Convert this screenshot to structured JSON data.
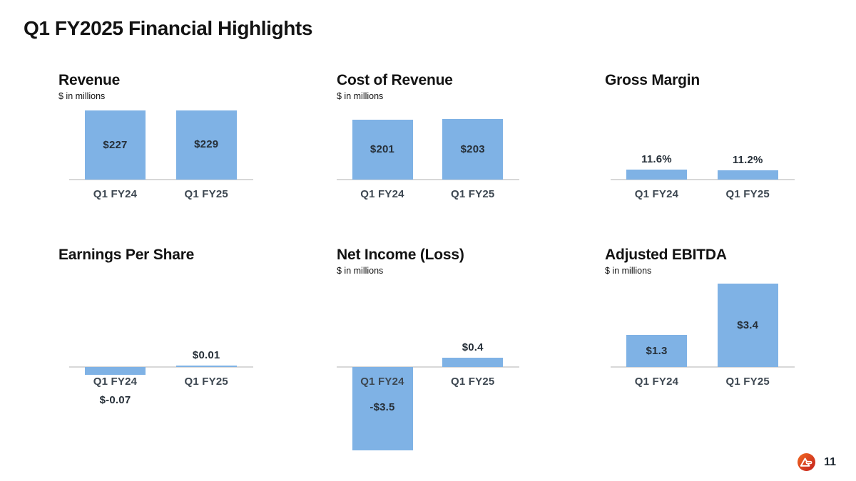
{
  "slide": {
    "title": "Q1 FY2025 Financial Highlights",
    "page_number": "11"
  },
  "colors": {
    "bar": "#7FB2E5",
    "baseline": "#D8D8D8",
    "title": "#131313",
    "value_label": "#262F38",
    "category_label": "#3D4751",
    "logo_red": "#C21F1F",
    "logo_orange": "#F26A21"
  },
  "chart_data": [
    {
      "id": "revenue",
      "type": "bar",
      "title": "Revenue",
      "subtitle": "$ in millions",
      "categories": [
        "Q1 FY24",
        "Q1 FY25"
      ],
      "values": [
        227,
        229
      ],
      "value_labels": [
        "$227",
        "$229"
      ],
      "ylim": [
        0,
        235
      ],
      "label_placement": [
        "inside",
        "inside"
      ],
      "grid": false,
      "legend": "none"
    },
    {
      "id": "cost-of-revenue",
      "type": "bar",
      "title": "Cost of Revenue",
      "subtitle": "$ in millions",
      "categories": [
        "Q1 FY24",
        "Q1 FY25"
      ],
      "values": [
        201,
        203
      ],
      "value_labels": [
        "$201",
        "$203"
      ],
      "ylim": [
        0,
        240
      ],
      "label_placement": [
        "inside",
        "inside"
      ],
      "grid": false,
      "legend": "none"
    },
    {
      "id": "gross-margin",
      "type": "bar",
      "title": "Gross Margin",
      "subtitle": "",
      "categories": [
        "Q1 FY24",
        "Q1 FY25"
      ],
      "values": [
        11.6,
        11.2
      ],
      "value_labels": [
        "11.6%",
        "11.2%"
      ],
      "ylim": [
        0,
        85
      ],
      "label_placement": [
        "above",
        "above"
      ],
      "grid": false,
      "legend": "none"
    },
    {
      "id": "earnings-per-share",
      "type": "bar",
      "title": "Earnings Per Share",
      "subtitle": "",
      "categories": [
        "Q1 FY24",
        "Q1 FY25"
      ],
      "values": [
        -0.07,
        0.01
      ],
      "value_labels": [
        "$-0.07",
        "$0.01"
      ],
      "ylim": [
        -0.8,
        0.8
      ],
      "label_placement": [
        "below-negative",
        "above"
      ],
      "grid": false,
      "legend": "none"
    },
    {
      "id": "net-income-loss",
      "type": "bar",
      "title": "Net Income (Loss)",
      "subtitle": "$ in millions",
      "categories": [
        "Q1 FY24",
        "Q1 FY25"
      ],
      "values": [
        -3.5,
        0.4
      ],
      "value_labels": [
        "-$3.5",
        "$0.4"
      ],
      "ylim": [
        -3.6,
        3.6
      ],
      "label_placement": [
        "inside-negative",
        "above"
      ],
      "grid": false,
      "legend": "none"
    },
    {
      "id": "adjusted-ebitda",
      "type": "bar",
      "title": "Adjusted EBITDA",
      "subtitle": "$ in millions",
      "categories": [
        "Q1 FY24",
        "Q1 FY25"
      ],
      "values": [
        1.3,
        3.4
      ],
      "value_labels": [
        "$1.3",
        "$3.4"
      ],
      "ylim": [
        0,
        3.5
      ],
      "label_placement": [
        "inside",
        "inside"
      ],
      "grid": false,
      "legend": "none"
    }
  ]
}
